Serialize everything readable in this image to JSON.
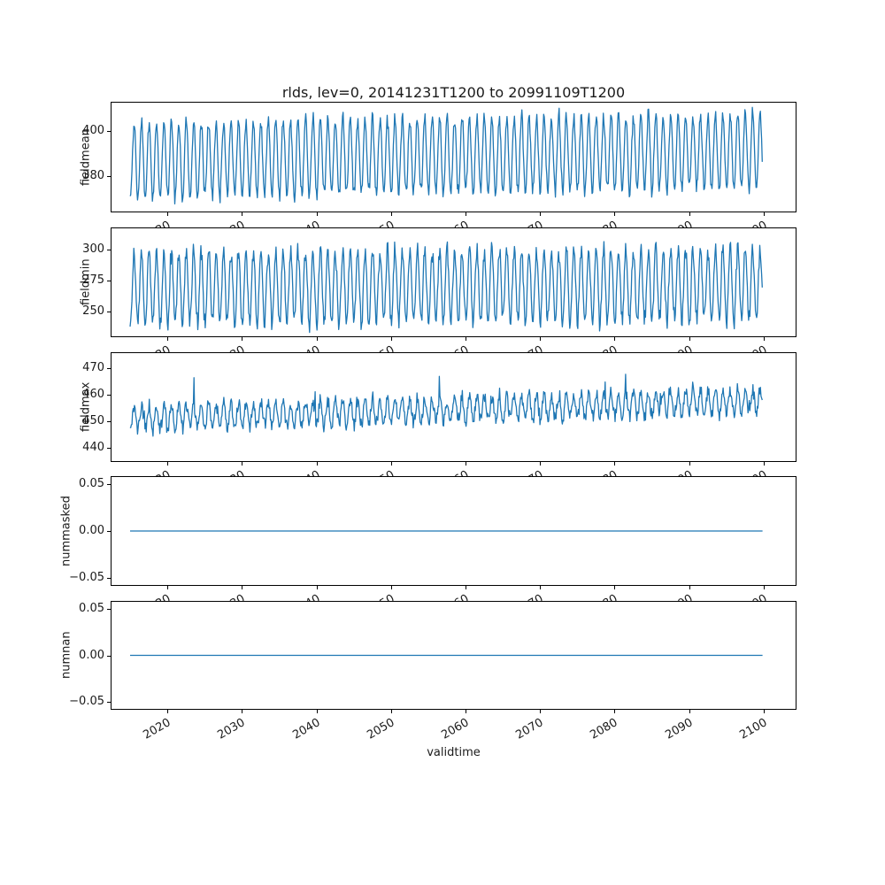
{
  "colors": {
    "line": "#1f77b4",
    "axis": "#000000",
    "text": "#1a1a1a"
  },
  "chart_data": {
    "type": "line",
    "title": "rlds, lev=0, 20141231T1200 to 20991109T1200",
    "xlabel": "validtime",
    "legend": "none",
    "grid": false,
    "xlim": [
      2012.5,
      2104.3
    ],
    "x_ticks": {
      "values": [
        2020,
        2030,
        2040,
        2050,
        2060,
        2070,
        2080,
        2090,
        2100
      ],
      "labels": [
        "2020",
        "2030",
        "2040",
        "2050",
        "2060",
        "2070",
        "2080",
        "2090",
        "2100"
      ],
      "rotation_deg": 30
    },
    "time_range": {
      "start": "20141231T1200",
      "end": "20991109T1200",
      "start_year_frac": 2014.99,
      "end_year_frac": 2099.86
    },
    "subplots": [
      {
        "name": "fieldmean",
        "ylabel": "fieldmean",
        "ylim": [
          364.5,
          412.2
        ],
        "ytick_values": [
          380,
          400
        ],
        "ytick_labels": [
          "380",
          "400"
        ],
        "series": {
          "kind": "seasonal",
          "points_per_year": 12,
          "base_start": 387,
          "base_end": 391,
          "amplitude": 16.5,
          "amp_jitter": 0.15,
          "noise": 1.8,
          "spike_prob": 0,
          "spike_amp": 0,
          "seed": 11,
          "approx_min": 368,
          "approx_max": 410
        }
      },
      {
        "name": "fieldmin",
        "ylabel": "fieldmin",
        "ylim": [
          229.5,
          317.5
        ],
        "ytick_values": [
          250,
          275,
          300
        ],
        "ytick_labels": [
          "250",
          "275",
          "300"
        ],
        "series": {
          "kind": "seasonal",
          "points_per_year": 12,
          "base_start": 269,
          "base_end": 272,
          "amplitude": 29,
          "amp_jitter": 0.18,
          "noise": 5,
          "spike_prob": 0.004,
          "spike_amp": 8,
          "seed": 22,
          "approx_min": 232,
          "approx_max": 315
        }
      },
      {
        "name": "fieldmax",
        "ylabel": "fieldmax",
        "ylim": [
          434.8,
          475.6
        ],
        "ytick_values": [
          440,
          450,
          460,
          470
        ],
        "ytick_labels": [
          "440",
          "450",
          "460",
          "470"
        ],
        "series": {
          "kind": "seasonal",
          "points_per_year": 12,
          "base_start": 451,
          "base_end": 457.5,
          "amplitude": 4.5,
          "amp_jitter": 0.25,
          "noise": 2.2,
          "spike_prob": 0.02,
          "spike_amp": 9,
          "seed": 33,
          "approx_min": 441,
          "approx_max": 475
        }
      },
      {
        "name": "nummasked",
        "ylabel": "nummasked",
        "ylim": [
          -0.0572,
          0.0572
        ],
        "ytick_values": [
          -0.05,
          0.0,
          0.05
        ],
        "ytick_labels": [
          "−0.05",
          "0.00",
          "0.05"
        ],
        "series": {
          "kind": "constant",
          "value": 0.0,
          "points_per_year": 1
        }
      },
      {
        "name": "numnan",
        "ylabel": "numnan",
        "ylim": [
          -0.0572,
          0.0572
        ],
        "ytick_values": [
          -0.05,
          0.0,
          0.05
        ],
        "ytick_labels": [
          "−0.05",
          "0.00",
          "0.05"
        ],
        "series": {
          "kind": "constant",
          "value": 0.0,
          "points_per_year": 1
        }
      }
    ]
  }
}
